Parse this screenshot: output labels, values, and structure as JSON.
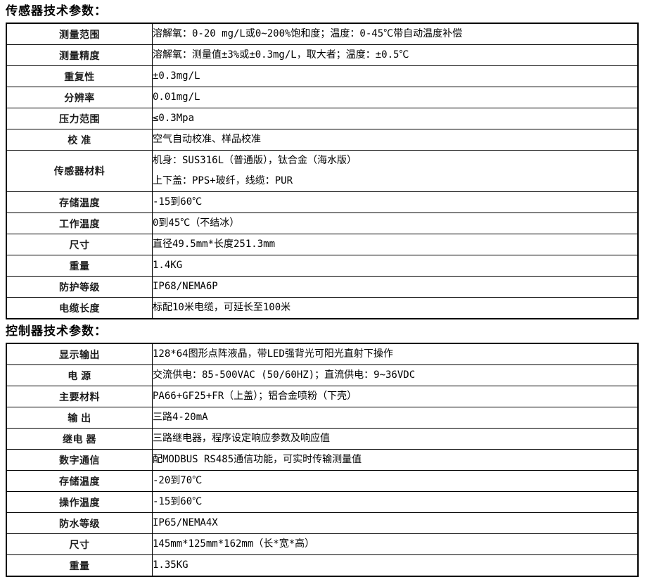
{
  "sections": [
    {
      "title": "传感器技术参数：",
      "rows": [
        {
          "label": "测量范围",
          "value": "溶解氧：0-20 mg/L或0~200%饱和度；温度：0-45℃带自动温度补偿"
        },
        {
          "label": "测量精度",
          "value": "溶解氧：测量值±3%或±0.3mg/L，取大者；温度：±0.5℃"
        },
        {
          "label": "重复性",
          "value": "±0.3mg/L"
        },
        {
          "label": "分辨率",
          "value": "0.01mg/L"
        },
        {
          "label": "压力范围",
          "value": "≤0.3Mpa"
        },
        {
          "label": "校 准",
          "value": "空气自动校准、样品校准"
        },
        {
          "label": "传感器材料",
          "value_lines": [
            "机身：SUS316L（普通版），钛合金（海水版）",
            "上下盖：PPS+玻纤，线缆：PUR"
          ]
        },
        {
          "label": "存储温度",
          "value": "-15到60℃"
        },
        {
          "label": "工作温度",
          "value": "0到45℃（不结冰）"
        },
        {
          "label": "尺寸",
          "value": "直径49.5mm*长度251.3mm"
        },
        {
          "label": "重量",
          "value": "1.4KG"
        },
        {
          "label": "防护等级",
          "value": "IP68/NEMA6P"
        },
        {
          "label": "电缆长度",
          "value": "标配10米电缆，可延长至100米"
        }
      ]
    },
    {
      "title": "控制器技术参数：",
      "rows": [
        {
          "label": "显示输出",
          "value": "128*64图形点阵液晶，带LED强背光可阳光直射下操作"
        },
        {
          "label": "电 源",
          "value": "交流供电：85-500VAC (50/60HZ)；直流供电：9~36VDC"
        },
        {
          "label": "主要材料",
          "value": "PA66+GF25+FR（上盖）；铝合金喷粉（下壳）"
        },
        {
          "label": "输 出",
          "value": "三路4-20mA"
        },
        {
          "label": "继电 器",
          "value": "三路继电器，程序设定响应参数及响应值"
        },
        {
          "label": "数字通信",
          "value": "配MODBUS RS485通信功能，可实时传输测量值"
        },
        {
          "label": "存储温度",
          "value": "-20到70℃"
        },
        {
          "label": "操作温度",
          "value": "-15到60℃"
        },
        {
          "label": "防水等级",
          "value": "IP65/NEMA4X"
        },
        {
          "label": "尺寸",
          "value": "145mm*125mm*162mm（长*宽*高）"
        },
        {
          "label": "重量",
          "value": "1.35KG"
        }
      ]
    }
  ]
}
